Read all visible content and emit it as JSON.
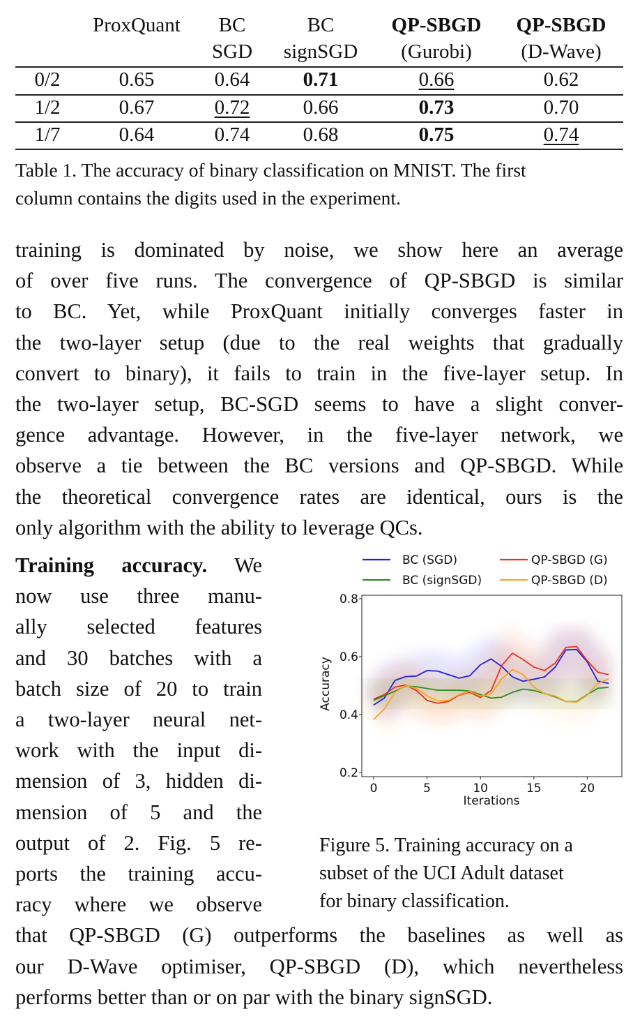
{
  "table": {
    "headers": [
      {
        "line1": "",
        "line2": ""
      },
      {
        "line1": "ProxQuant",
        "line2": ""
      },
      {
        "line1": "BC",
        "line2": "SGD"
      },
      {
        "line1": "BC",
        "line2": "signSGD"
      },
      {
        "line1": "QP-SBGD",
        "line2": "(Gurobi)"
      },
      {
        "line1": "QP-SBGD",
        "line2": "(D-Wave)"
      }
    ],
    "rows": [
      {
        "cells": [
          "0/2",
          "0.65",
          "0.64",
          "0.71",
          "0.66",
          "0.62"
        ],
        "bold": [
          3
        ],
        "underline": [
          4
        ]
      },
      {
        "cells": [
          "1/2",
          "0.67",
          "0.72",
          "0.66",
          "0.73",
          "0.70"
        ],
        "bold": [
          4
        ],
        "underline": [
          2
        ]
      },
      {
        "cells": [
          "1/7",
          "0.64",
          "0.74",
          "0.68",
          "0.75",
          "0.74"
        ],
        "bold": [
          4
        ],
        "underline": [
          5
        ]
      }
    ],
    "caption": [
      "Table 1. The accuracy of binary classification on MNIST. The first",
      "column contains the digits used in the experiment."
    ]
  },
  "paragraph1": [
    "training is dominated by noise, we show here an average",
    "of over five runs. The convergence of QP-SBGD is similar",
    "to BC. Yet, while ProxQuant initially converges faster in",
    "the two-layer setup (due to the real weights that gradually",
    "convert to binary), it fails to train in the five-layer setup. In",
    "the two-layer setup, BC-SGD seems to have a slight conver-",
    "gence advantage.  However, in the five-layer network, we",
    "observe a tie between the BC versions and QP-SBGD. While",
    "the theoretical convergence rates are identical, ours is the",
    "only algorithm with the ability to leverage QCs."
  ],
  "paragraph2": {
    "heading": "Training accuracy.",
    "first_line_rest": "We",
    "left_lines": [
      "now use three manu-",
      "ally selected features",
      "and 30 batches with a",
      "batch size of 20 to train",
      "a two-layer neural net-",
      "work with the input di-",
      "mension of 3, hidden di-",
      "mension of 5 and the",
      "output of 2.  Fig. 5 re-",
      "ports the training accu-",
      "racy where we observe"
    ],
    "full_lines": [
      "that QP-SBGD (G) outperforms the baselines as well as",
      "our D-Wave optimiser, QP-SBGD (D), which nevertheless",
      "performs better than or on par with the binary signSGD."
    ]
  },
  "figure_caption": [
    "Figure 5. Training accuracy on a",
    "subset of the UCI Adult dataset",
    "for binary classification."
  ],
  "chart_data": {
    "type": "line",
    "xlabel": "Iterations",
    "ylabel": "Accuracy",
    "xlim": [
      -1,
      23
    ],
    "ylim": [
      0.19,
      0.81
    ],
    "xticks": [
      0,
      5,
      10,
      15,
      20
    ],
    "yticks": [
      0.2,
      0.4,
      0.6,
      0.8
    ],
    "ytick_labels": [
      "0.2",
      "0.4",
      "0.6",
      "0.8"
    ],
    "legend": "top",
    "grid": false,
    "x": [
      0,
      1,
      2,
      3,
      4,
      5,
      6,
      7,
      8,
      9,
      10,
      11,
      12,
      13,
      14,
      15,
      16,
      17,
      18,
      19,
      20,
      21,
      22
    ],
    "series": [
      {
        "name": "BC (SGD)",
        "color": "#1f1fe0",
        "values": [
          0.433,
          0.457,
          0.518,
          0.531,
          0.533,
          0.552,
          0.55,
          0.538,
          0.526,
          0.534,
          0.572,
          0.592,
          0.566,
          0.53,
          0.515,
          0.522,
          0.53,
          0.564,
          0.623,
          0.625,
          0.582,
          0.515,
          0.508
        ]
      },
      {
        "name": "QP-SBGD (G)",
        "color": "#e8321e",
        "values": [
          0.453,
          0.469,
          0.495,
          0.502,
          0.483,
          0.449,
          0.439,
          0.445,
          0.467,
          0.477,
          0.459,
          0.483,
          0.57,
          0.612,
          0.59,
          0.564,
          0.552,
          0.578,
          0.632,
          0.635,
          0.586,
          0.546,
          0.538
        ]
      },
      {
        "name": "BC (signSGD)",
        "color": "#2e8b22",
        "values": [
          0.449,
          0.465,
          0.481,
          0.498,
          0.496,
          0.49,
          0.484,
          0.484,
          0.484,
          0.481,
          0.469,
          0.457,
          0.46,
          0.477,
          0.488,
          0.483,
          0.473,
          0.461,
          0.445,
          0.445,
          0.469,
          0.491,
          0.494
        ]
      },
      {
        "name": "QP-SBGD (D)",
        "color": "#f5a623",
        "values": [
          0.383,
          0.419,
          0.477,
          0.5,
          0.49,
          0.465,
          0.447,
          0.449,
          0.469,
          0.48,
          0.464,
          0.472,
          0.523,
          0.556,
          0.538,
          0.495,
          0.472,
          0.464,
          0.445,
          0.443,
          0.467,
          0.508,
          0.523
        ]
      }
    ]
  }
}
